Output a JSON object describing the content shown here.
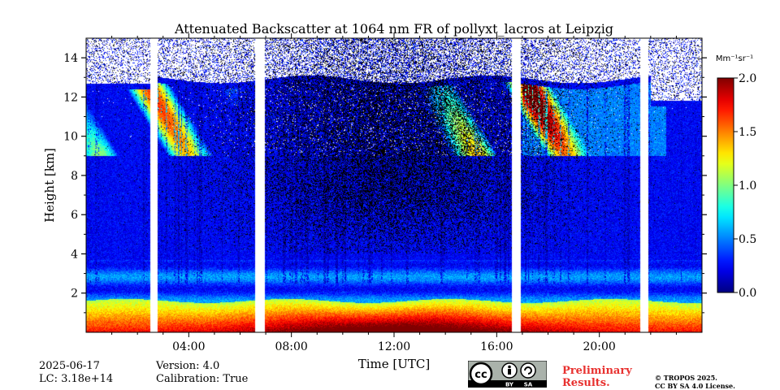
{
  "chart_data": {
    "type": "heatmap",
    "title": "Attenuated Backscatter at 1064 nm FR of pollyxt_lacros at Leipzig",
    "xlabel": "Time [UTC]",
    "ylabel": "Height [km]",
    "xlim": [
      0,
      24
    ],
    "ylim": [
      0,
      15
    ],
    "x_tick_labels": [
      "04:00",
      "08:00",
      "12:00",
      "16:00",
      "20:00"
    ],
    "x_tick_values": [
      4,
      8,
      12,
      16,
      20
    ],
    "y_tick_values": [
      2,
      4,
      6,
      8,
      10,
      12,
      14
    ],
    "y_tick_labels": [
      "2",
      "4",
      "6",
      "8",
      "10",
      "12",
      "14"
    ],
    "colorbar": {
      "unit": "Mm⁻¹sr⁻¹",
      "min": 0.0,
      "max": 2.0,
      "tick_values": [
        0.0,
        0.5,
        1.0,
        1.5,
        2.0
      ],
      "tick_labels": [
        "0.0",
        "0.5",
        "1.0",
        "1.5",
        "2.0"
      ],
      "colormap": "jet"
    },
    "data_gaps_hours": [
      [
        2.5,
        2.8
      ],
      [
        6.6,
        6.95
      ],
      [
        16.6,
        16.95
      ],
      [
        21.6,
        21.9
      ]
    ],
    "cloud_top_km": 12.6,
    "boundary_layer_top_km": 1.6
  },
  "footer": {
    "date": "2025-06-17",
    "lc": "LC: 3.18e+14",
    "version": "Version: 4.0",
    "calibration": "Calibration: True",
    "preliminary_line1": "Preliminary",
    "preliminary_line2": "Results.",
    "copyright_line1": "© TROPOS 2025.",
    "copyright_line2": "CC BY SA 4.0 License.",
    "cc_by": "BY",
    "cc_sa": "SA"
  }
}
